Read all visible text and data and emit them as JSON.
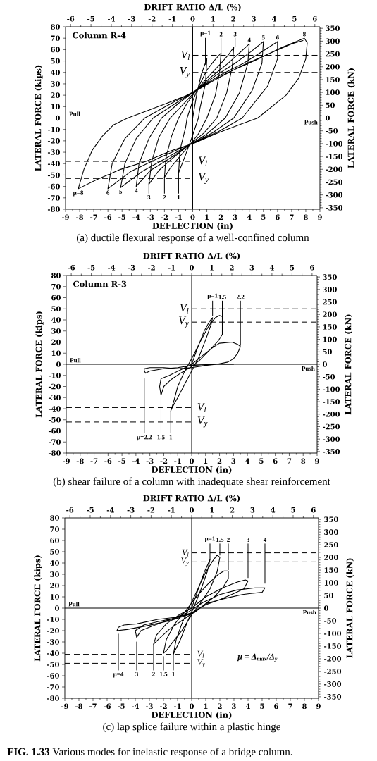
{
  "chart_data": [
    {
      "type": "line",
      "title": "(a) ductile flexural response of a well-confined column",
      "subtitle": "Column R-4",
      "xlabel": "DEFLECTION (in)",
      "ylabel": "LATERAL FORCE (kips)",
      "x2label": "DRIFT RATIO Δ/L (%)",
      "y2label": "LATERAL FORCE (kN)",
      "xlim": [
        -9,
        9
      ],
      "xticks": [
        -9,
        -8,
        -7,
        -6,
        -5,
        -4,
        -3,
        -2,
        -1,
        0,
        1,
        2,
        3,
        4,
        5,
        6,
        7,
        8,
        9
      ],
      "ylim": [
        -80,
        80
      ],
      "yticks": [
        -80,
        -70,
        -60,
        -50,
        -40,
        -30,
        -20,
        -10,
        0,
        10,
        20,
        30,
        40,
        50,
        60,
        70,
        80
      ],
      "x2lim": [
        -6.25,
        6.25
      ],
      "x2ticks": [
        -6,
        -5,
        -4,
        -3,
        -2,
        -1,
        0,
        1,
        2,
        3,
        4,
        5,
        6
      ],
      "y2lim": [
        -356,
        356
      ],
      "y2ticks": [
        -350,
        -300,
        -250,
        -200,
        -150,
        -100,
        -50,
        0,
        50,
        100,
        150,
        200,
        250,
        300,
        350
      ],
      "series": [
        {
          "color": "#000000",
          "x": [
            0,
            0.3,
            0.6,
            1.0,
            0.9,
            0.5,
            0.4,
            0,
            -0.5,
            -1.0,
            -0.9,
            -0.5,
            -0.4,
            0,
            0.4,
            1.0,
            1.5,
            2.0,
            1.9,
            1.6,
            1.0,
            0.4,
            -0.3,
            -1.0,
            -1.6,
            -2.0,
            -1.9,
            -1.5,
            -1.0,
            -0.4,
            0.3,
            1.0,
            2.0,
            2.5,
            2.9,
            2.8,
            2.4,
            1.7,
            0.8,
            -0.4,
            -1.5,
            -2.4,
            -3.1,
            -2.9,
            -2.4,
            -1.6,
            -0.6,
            0.3,
            1.3,
            2.5,
            3.3,
            4.0,
            3.9,
            3.3,
            2.3,
            1.0,
            -0.4,
            -1.7,
            -3.0,
            -4.0,
            -3.8,
            -3.1,
            -2.2,
            -1.0,
            0.3,
            1.6,
            3.0,
            4.1,
            5.0,
            4.9,
            4.2,
            2.9,
            1.4,
            -0.3,
            -2.0,
            -3.6,
            -5.1,
            -4.8,
            -4.0,
            -2.8,
            -1.2,
            0.3,
            2.0,
            3.6,
            5.0,
            6.0,
            6.0,
            5.3,
            3.5,
            1.8,
            -0.2,
            -2.4,
            -4.4,
            -6.0,
            -5.7,
            -4.8,
            -3.4,
            -1.5,
            0.2,
            2.5,
            4.5,
            6.3,
            7.9,
            8.1,
            8.0,
            7.5,
            6.6,
            5.6,
            4.6,
            3.5,
            1.8,
            0.1,
            -1.6,
            -3.3,
            -5.1,
            -6.8,
            -8.1,
            -7.7,
            -7.1,
            -6.4,
            -5.6,
            -4.6,
            -3.3,
            -1.6,
            0,
            1.5,
            3.5,
            5.5,
            7.0,
            7.8
          ],
          "values": [
            0,
            22,
            38,
            52,
            30,
            8,
            0,
            -15,
            -32,
            -48,
            -28,
            -8,
            0,
            15,
            27,
            42,
            50,
            57,
            40,
            20,
            0,
            -14,
            -25,
            -35,
            -44,
            -52,
            -35,
            -16,
            0,
            13,
            25,
            35,
            48,
            55,
            62,
            45,
            22,
            0,
            -13,
            -25,
            -36,
            -46,
            -58,
            -38,
            -17,
            0,
            13,
            25,
            36,
            48,
            57,
            65,
            48,
            22,
            0,
            -14,
            -25,
            -36,
            -46,
            -60,
            -40,
            -18,
            0,
            13,
            25,
            37,
            48,
            58,
            67,
            48,
            24,
            0,
            -13,
            -24,
            -36,
            -47,
            -61,
            -40,
            -18,
            0,
            13,
            25,
            38,
            48,
            59,
            67,
            52,
            28,
            0,
            -12,
            -23,
            -35,
            -47,
            -62,
            -40,
            -18,
            0,
            13,
            24,
            40,
            51,
            62,
            70,
            66,
            52,
            35,
            20,
            10,
            0,
            -5,
            -13,
            -22,
            -29,
            -38,
            -45,
            -54,
            -62,
            -45,
            -28,
            -16,
            -6,
            0,
            6,
            14,
            22,
            33,
            46,
            57,
            65,
            68
          ]
        },
        {
          "color": "#000000",
          "x": [
            0.9,
            0.9
          ],
          "values": [
            70,
            47
          ]
        },
        {
          "color": "#000000",
          "x": [
            2.0,
            2.0
          ],
          "values": [
            70,
            54
          ]
        },
        {
          "color": "#000000",
          "x": [
            3.0,
            3.0
          ],
          "values": [
            70,
            63
          ]
        },
        {
          "color": "#000000",
          "x": [
            -3.1,
            -3.1
          ],
          "values": [
            -57,
            -66
          ]
        },
        {
          "color": "#000000",
          "x": [
            -2.0,
            -2.0
          ],
          "values": [
            -52,
            -66
          ]
        },
        {
          "color": "#000000",
          "x": [
            -1.0,
            -1.0
          ],
          "values": [
            -46,
            -66
          ]
        }
      ],
      "ref_lines": [
        {
          "axis": "x",
          "value": 0,
          "color": "#000000",
          "line_style": "solid"
        },
        {
          "axis": "y",
          "value": 0,
          "color": "#000000",
          "line_style": "solid"
        },
        {
          "axis": "y",
          "value": 55,
          "label": "V$_{l}$",
          "color": "#000000",
          "line_style": "dashed"
        },
        {
          "axis": "y",
          "value": 40,
          "label": "V$_{y}$",
          "color": "#000000",
          "line_style": "dashed"
        },
        {
          "axis": "y",
          "value": -38,
          "label": "V$_{l}$",
          "color": "#000000",
          "line_style": "dashed"
        },
        {
          "axis": "y",
          "value": -53,
          "label": "V$_{y}$",
          "color": "#000000",
          "line_style": "dashed"
        }
      ],
      "annotations": [
        {
          "text": "Pull",
          "x": -8.8,
          "y": 0
        },
        {
          "text": "Push",
          "x": 8.9,
          "y": 0
        },
        {
          "text": "μ=1",
          "x": 0.9,
          "y": 70
        },
        {
          "text": "2",
          "x": 2.0,
          "y": 70
        },
        {
          "text": "3",
          "x": 3.0,
          "y": 70
        },
        {
          "text": "4",
          "x": 4.0,
          "y": 65
        },
        {
          "text": "5",
          "x": 5.0,
          "y": 67
        },
        {
          "text": "6",
          "x": 6.0,
          "y": 67
        },
        {
          "text": "8",
          "x": 7.9,
          "y": 70
        },
        {
          "text": "μ=8",
          "x": -8.1,
          "y": -62
        },
        {
          "text": "6",
          "x": -6.0,
          "y": -62
        },
        {
          "text": "5",
          "x": -5.1,
          "y": -61
        },
        {
          "text": "4",
          "x": -4.0,
          "y": -60
        },
        {
          "text": "3",
          "x": -3.1,
          "y": -66
        },
        {
          "text": "2",
          "x": -2.0,
          "y": -66
        },
        {
          "text": "1",
          "x": -1.0,
          "y": -66
        }
      ]
    },
    {
      "type": "line",
      "title": "(b) shear failure of a column with inadequate shear reinforcement",
      "subtitle": "Column R-3",
      "xlabel": "DEFLECTION (in)",
      "ylabel": "LATERAL FORCE (kips)",
      "x2label": "DRIFT RATIO Δ/L (%)",
      "y2label": "LATERAL FORCE (kN)",
      "xlim": [
        -9,
        9
      ],
      "xticks": [
        -9,
        -8,
        -7,
        -6,
        -5,
        -4,
        -3,
        -2,
        -1,
        0,
        1,
        2,
        3,
        4,
        5,
        6,
        7,
        8,
        9
      ],
      "ylim": [
        -80,
        80
      ],
      "yticks": [
        -80,
        -70,
        -60,
        -50,
        -40,
        -30,
        -20,
        -10,
        0,
        10,
        20,
        30,
        40,
        50,
        60,
        70,
        80
      ],
      "x2lim": [
        -6.25,
        6.25
      ],
      "x2ticks": [
        -6,
        -5,
        -4,
        -3,
        -2,
        -1,
        0,
        1,
        2,
        3,
        4,
        5,
        6
      ],
      "y2lim": [
        -356,
        356
      ],
      "y2ticks": [
        -350,
        -300,
        -250,
        -200,
        -150,
        -100,
        -50,
        0,
        50,
        100,
        150,
        200,
        250,
        300,
        350
      ],
      "series": [
        {
          "color": "#000000",
          "x": [
            0,
            0.4,
            0.9,
            1.3,
            1.5,
            1.4,
            1.0,
            0.5,
            0,
            -0.5,
            -1.0,
            -1.4,
            -1.5,
            -1.3,
            -1.0,
            -0.5,
            0,
            0.6,
            1.2,
            1.7,
            2.0,
            2.2,
            2.2,
            1.9,
            1.3,
            0.6,
            0,
            -0.8,
            -1.5,
            -2.0,
            -2.2,
            -2.3,
            -2.2,
            -1.6,
            -0.8,
            0,
            0.8,
            1.5,
            2.0,
            2.9,
            3.3,
            3.5,
            3.3,
            3.0,
            2.6,
            1.8,
            1.0,
            0,
            -1.0,
            -2.0,
            -3.0,
            -3.4,
            -3.4,
            -3.3,
            -3.0,
            -2.0,
            -1.0,
            0,
            1.5,
            3.0
          ],
          "values": [
            0,
            14,
            30,
            39,
            42,
            36,
            22,
            6,
            -6,
            -18,
            -30,
            -39,
            -42,
            -34,
            -20,
            -6,
            5,
            20,
            34,
            42,
            44,
            43,
            27,
            21,
            13,
            4,
            -2,
            -8,
            -14,
            -20,
            -28,
            -20,
            -13,
            -10,
            -5,
            0,
            8,
            15,
            19,
            20,
            18,
            16,
            10,
            5,
            2,
            0,
            -1,
            -3,
            -4,
            -3,
            -3,
            -4,
            -6,
            -8,
            -6,
            -4,
            -3,
            -1,
            0,
            0
          ]
        },
        {
          "color": "#000000",
          "x": [
            1.5,
            1.5
          ],
          "values": [
            57,
            44
          ]
        },
        {
          "color": "#000000",
          "x": [
            2.2,
            2.2
          ],
          "values": [
            57,
            44
          ]
        },
        {
          "color": "#000000",
          "x": [
            3.5,
            3.5
          ],
          "values": [
            57,
            17
          ]
        },
        {
          "color": "#000000",
          "x": [
            -3.4,
            -3.4
          ],
          "values": [
            -13,
            -62
          ]
        },
        {
          "color": "#000000",
          "x": [
            -2.2,
            -2.2
          ],
          "values": [
            -29,
            -62
          ]
        },
        {
          "color": "#000000",
          "x": [
            -1.5,
            -1.5
          ],
          "values": [
            -42,
            -62
          ]
        }
      ],
      "ref_lines": [
        {
          "axis": "x",
          "value": 0,
          "color": "#000000",
          "line_style": "solid"
        },
        {
          "axis": "y",
          "value": 0,
          "color": "#000000",
          "line_style": "solid"
        },
        {
          "axis": "y",
          "value": 50,
          "label": "V$_{l}$",
          "color": "#000000",
          "line_style": "dashed"
        },
        {
          "axis": "y",
          "value": 38,
          "label": "V$_{y}$",
          "color": "#000000",
          "line_style": "dashed"
        },
        {
          "axis": "y",
          "value": -39,
          "label": "V$_{l}$",
          "color": "#000000",
          "line_style": "dashed"
        },
        {
          "axis": "y",
          "value": -52,
          "label": "V$_{y}$",
          "color": "#000000",
          "line_style": "dashed"
        }
      ],
      "annotations": [
        {
          "text": "Pull",
          "x": -8.8,
          "y": 0
        },
        {
          "text": "Push",
          "x": 8.9,
          "y": 0
        },
        {
          "text": "μ=1",
          "x": 1.5,
          "y": 57
        },
        {
          "text": "1.5",
          "x": 2.2,
          "y": 57
        },
        {
          "text": "2.2",
          "x": 3.5,
          "y": 57
        },
        {
          "text": "μ=2.2",
          "x": -3.4,
          "y": -62
        },
        {
          "text": "1.5",
          "x": -2.2,
          "y": -62
        },
        {
          "text": "1",
          "x": -1.5,
          "y": -62
        }
      ]
    },
    {
      "type": "line",
      "title": "(c) lap splice failure within a plastic hinge",
      "xlabel": "DEFLECTION (in)",
      "ylabel": "LATERAL FORCE (kips)",
      "x2label": "DRIFT RATIO Δ/L (%)",
      "y2label": "LATERAL FORCE (kN)",
      "xlim": [
        -9,
        9
      ],
      "xticks": [
        -9,
        -8,
        -7,
        -6,
        -5,
        -4,
        -3,
        -2,
        -1,
        0,
        1,
        2,
        3,
        4,
        5,
        6,
        7,
        8,
        9
      ],
      "ylim": [
        -80,
        80
      ],
      "yticks": [
        -80,
        -70,
        -60,
        -50,
        -40,
        -30,
        -20,
        -10,
        0,
        10,
        20,
        30,
        40,
        50,
        60,
        70,
        80
      ],
      "x2lim": [
        -6.25,
        6.25
      ],
      "x2ticks": [
        -6,
        -5,
        -4,
        -3,
        -2,
        -1,
        0,
        1,
        2,
        3,
        4,
        5,
        6
      ],
      "y2lim": [
        -356,
        356
      ],
      "y2ticks": [
        -350,
        -300,
        -250,
        -200,
        -150,
        -100,
        -50,
        0,
        50,
        100,
        150,
        200,
        250,
        300,
        350
      ],
      "series": [
        {
          "color": "#000000",
          "x": [
            0,
            0.5,
            0.9,
            1.3,
            1.1,
            0.7,
            0.2,
            -0.3,
            -0.8,
            -1.3,
            -1.1,
            -0.7,
            -0.2,
            0.4,
            1.0,
            1.5,
            1.8,
            2.0,
            1.8,
            1.3,
            0.6,
            0,
            -0.7,
            -1.4,
            -1.8,
            -2.0,
            -1.8,
            -1.2,
            -0.4,
            0.4,
            1.2,
            1.9,
            2.3,
            2.6,
            2.6,
            2.2,
            1.6,
            0.8,
            0,
            -0.8,
            -1.6,
            -2.3,
            -2.7,
            -2.5,
            -1.8,
            -0.9,
            0,
            1.0,
            2.2,
            3.2,
            3.8,
            4.0,
            3.7,
            3.0,
            1.9,
            1.0,
            0,
            -1.2,
            -2.4,
            -3.4,
            -4.0,
            -3.9,
            -3.6,
            -2.8,
            -1.5,
            -0.3,
            0.8,
            2.0,
            3.2,
            4.5,
            5.2,
            5.0,
            4.2,
            3.6,
            2.5,
            1.9,
            1.0,
            0.2,
            -1.0,
            -2.4,
            -3.9,
            -4.8,
            -5.2,
            -5.3,
            -4.6,
            -3.3,
            -1.5,
            0
          ],
          "values": [
            0,
            18,
            32,
            43,
            32,
            18,
            2,
            -12,
            -28,
            -41,
            -28,
            -14,
            0,
            16,
            32,
            42,
            47,
            45,
            32,
            17,
            4,
            -6,
            -20,
            -31,
            -38,
            -40,
            -28,
            -14,
            -2,
            11,
            22,
            30,
            33,
            33,
            26,
            18,
            10,
            2,
            -5,
            -12,
            -19,
            -27,
            -32,
            -24,
            -14,
            -6,
            0,
            10,
            18,
            23,
            25,
            24,
            17,
            13,
            7,
            3,
            -4,
            -9,
            -12,
            -15,
            -20,
            -26,
            -20,
            -16,
            -10,
            -4,
            5,
            12,
            16,
            18,
            18,
            14,
            13,
            12,
            9,
            7,
            4,
            -4,
            -8,
            -10,
            -14,
            -15,
            -17,
            -20,
            -19,
            -16,
            -11,
            -5
          ]
        },
        {
          "color": "#000000",
          "x": [
            1.3,
            1.3
          ],
          "values": [
            57,
            43
          ]
        },
        {
          "color": "#000000",
          "x": [
            2.0,
            2.0
          ],
          "values": [
            57,
            47
          ]
        },
        {
          "color": "#000000",
          "x": [
            2.6,
            2.6
          ],
          "values": [
            57,
            34
          ]
        },
        {
          "color": "#000000",
          "x": [
            4.0,
            4.0
          ],
          "values": [
            57,
            27
          ]
        },
        {
          "color": "#000000",
          "x": [
            5.2,
            5.2
          ],
          "values": [
            57,
            22
          ]
        },
        {
          "color": "#000000",
          "x": [
            -5.2,
            -5.2
          ],
          "values": [
            -23,
            -55
          ]
        },
        {
          "color": "#000000",
          "x": [
            -3.9,
            -3.9
          ],
          "values": [
            -30,
            -55
          ]
        },
        {
          "color": "#000000",
          "x": [
            -2.7,
            -2.7
          ],
          "values": [
            -32,
            -55
          ]
        },
        {
          "color": "#000000",
          "x": [
            -2.0,
            -2.0
          ],
          "values": [
            -43,
            -55
          ]
        },
        {
          "color": "#000000",
          "x": [
            -1.3,
            -1.3
          ],
          "values": [
            -41,
            -55
          ]
        }
      ],
      "ref_lines": [
        {
          "axis": "x",
          "value": 0,
          "color": "#000000",
          "line_style": "solid"
        },
        {
          "axis": "y",
          "value": 0,
          "color": "#000000",
          "line_style": "solid"
        },
        {
          "axis": "y",
          "value": 49,
          "label": "V$_{l}$",
          "color": "#000000",
          "line_style": "dashed"
        },
        {
          "axis": "y",
          "value": 41,
          "label": "V$_{y}$",
          "color": "#000000",
          "line_style": "dashed"
        },
        {
          "axis": "y",
          "value": -41,
          "label": "V$_{l}$",
          "color": "#000000",
          "line_style": "dashed"
        },
        {
          "axis": "y",
          "value": -49,
          "label": "V$_{y}$",
          "color": "#000000",
          "line_style": "dashed"
        }
      ],
      "annotations": [
        {
          "text": "Pull",
          "x": -8.8,
          "y": 0
        },
        {
          "text": "Push",
          "x": 8.9,
          "y": 0
        },
        {
          "text": "μ=1",
          "x": 1.3,
          "y": 57
        },
        {
          "text": "1.5",
          "x": 2.0,
          "y": 57
        },
        {
          "text": "2",
          "x": 2.6,
          "y": 57
        },
        {
          "text": "3",
          "x": 4.0,
          "y": 57
        },
        {
          "text": "4",
          "x": 5.2,
          "y": 57
        },
        {
          "text": "μ=4",
          "x": -5.2,
          "y": -55
        },
        {
          "text": "3",
          "x": -3.9,
          "y": -55
        },
        {
          "text": "2",
          "x": -2.7,
          "y": -55
        },
        {
          "text": "1.5",
          "x": -2.0,
          "y": -55
        },
        {
          "text": "1",
          "x": -1.3,
          "y": -55
        },
        "μ = Δ$_{max}$/Δ$_{y}$",
        "**FIG. 1.33** Various modes for inelastic response of a bridge column."
      ]
    }
  ]
}
